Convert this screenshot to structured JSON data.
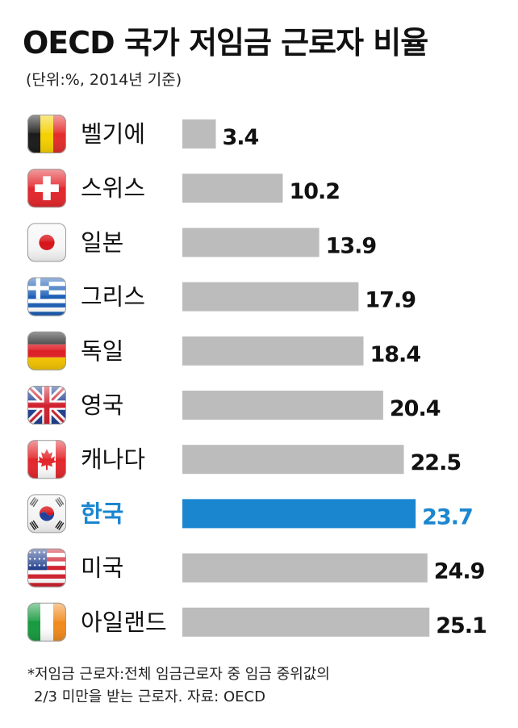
{
  "chart_data": {
    "type": "bar",
    "orientation": "horizontal",
    "title": "OECD  국가 저임금 근로자 비율",
    "subtitle": "(단위:%, 2014년 기준)",
    "categories": [
      "벨기에",
      "스위스",
      "일본",
      "그리스",
      "독일",
      "영국",
      "캐나다",
      "한국",
      "미국",
      "아일랜드"
    ],
    "values": [
      3.4,
      10.2,
      13.9,
      17.9,
      18.4,
      20.4,
      22.5,
      23.7,
      24.9,
      25.1
    ],
    "value_labels": [
      "3.4",
      "10.2",
      "13.9",
      "17.9",
      "18.4",
      "20.4",
      "22.5",
      "23.7",
      "24.9",
      "25.1"
    ],
    "flags": [
      "belgium-flag",
      "switzerland-flag",
      "japan-flag",
      "greece-flag",
      "germany-flag",
      "uk-flag",
      "canada-flag",
      "korea-flag",
      "usa-flag",
      "ireland-flag"
    ],
    "highlight_category": "한국",
    "colors": {
      "bar": "#bcbcbc",
      "highlight": "#1a86cf",
      "text": "#111111"
    },
    "grid": false,
    "legend": "none"
  },
  "footnote": {
    "line1": "*저임금 근로자:전체 임금근로자 중 임금 중위값의",
    "line2": "2/3 미만을 받는 근로자. 자료: OECD"
  }
}
